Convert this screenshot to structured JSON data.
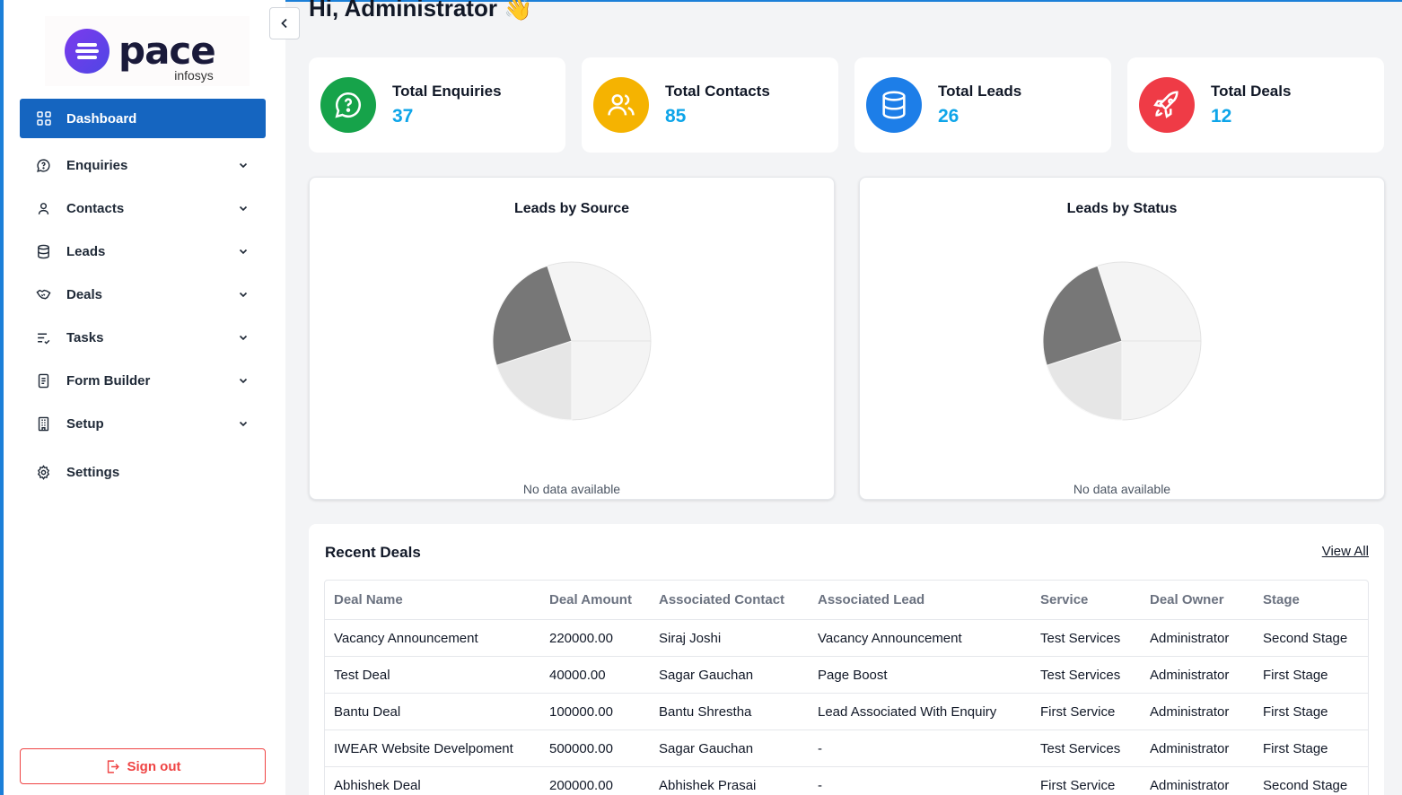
{
  "brand": {
    "name": "pace",
    "sub": "infosys",
    "color": "#5b3bd6"
  },
  "greeting": "Hi, Administrator",
  "greeting_emoji": "👋",
  "sidebar": {
    "items": [
      {
        "label": "Dashboard",
        "icon": "grid-icon",
        "active": true
      },
      {
        "label": "Enquiries",
        "icon": "chat-question-icon"
      },
      {
        "label": "Contacts",
        "icon": "user-icon"
      },
      {
        "label": "Leads",
        "icon": "database-icon"
      },
      {
        "label": "Deals",
        "icon": "handshake-icon"
      },
      {
        "label": "Tasks",
        "icon": "list-check-icon"
      },
      {
        "label": "Form Builder",
        "icon": "form-icon"
      },
      {
        "label": "Setup",
        "icon": "building-icon"
      },
      {
        "label": "Settings",
        "icon": "gear-icon"
      }
    ],
    "sign_out": "Sign out"
  },
  "stats": [
    {
      "label": "Total Enquiries",
      "value": "37",
      "color": "#16a34a",
      "icon": "chat-question-icon"
    },
    {
      "label": "Total Contacts",
      "value": "85",
      "color": "#f5b301",
      "icon": "users-icon"
    },
    {
      "label": "Total Leads",
      "value": "26",
      "color": "#1d7ee8",
      "icon": "database-icon"
    },
    {
      "label": "Total Deals",
      "value": "12",
      "color": "#ef3b46",
      "icon": "rocket-icon"
    }
  ],
  "charts": [
    {
      "title": "Leads by Source",
      "empty": "No data available"
    },
    {
      "title": "Leads by Status",
      "empty": "No data available"
    }
  ],
  "chart_data": [
    {
      "type": "pie",
      "title": "Leads by Source",
      "values": [],
      "note": "No data available"
    },
    {
      "type": "pie",
      "title": "Leads by Status",
      "values": [],
      "note": "No data available"
    }
  ],
  "deals": {
    "title": "Recent Deals",
    "view_all": "View All",
    "columns": [
      "Deal Name",
      "Deal Amount",
      "Associated Contact",
      "Associated Lead",
      "Service",
      "Deal Owner",
      "Stage"
    ],
    "rows": [
      [
        "Vacancy Announcement",
        "220000.00",
        "Siraj Joshi",
        "Vacancy Announcement",
        "Test Services",
        "Administrator",
        "Second Stage"
      ],
      [
        "Test Deal",
        "40000.00",
        "Sagar Gauchan",
        "Page Boost",
        "Test Services",
        "Administrator",
        "First Stage"
      ],
      [
        "Bantu Deal",
        "100000.00",
        "Bantu Shrestha",
        "Lead Associated With Enquiry",
        "First Service",
        "Administrator",
        "First Stage"
      ],
      [
        "IWEAR Website Develpoment",
        "500000.00",
        "Sagar Gauchan",
        "-",
        "Test Services",
        "Administrator",
        "First Stage"
      ],
      [
        "Abhishek Deal",
        "200000.00",
        "Abhishek Prasai",
        "-",
        "First Service",
        "Administrator",
        "Second Stage"
      ]
    ]
  }
}
